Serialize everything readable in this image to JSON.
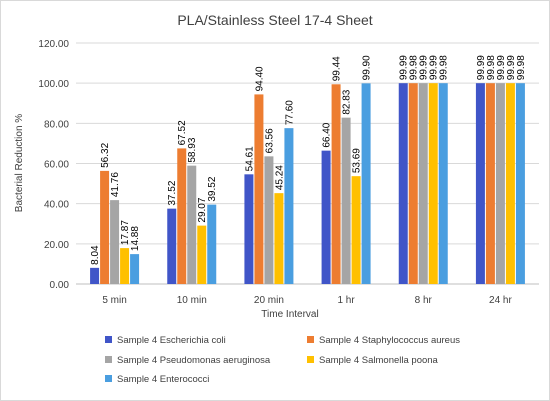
{
  "chart_data": {
    "type": "bar",
    "title": "PLA/Stainless Steel 17-4 Sheet",
    "xlabel": "Time Interval",
    "ylabel": "Bacterial Reduction %",
    "ylim": [
      0,
      120
    ],
    "yticks": [
      "0.00",
      "20.00",
      "40.00",
      "60.00",
      "80.00",
      "100.00",
      "120.00"
    ],
    "grid": true,
    "legend_position": "bottom",
    "categories": [
      "5 min",
      "10 min",
      "20 min",
      "1 hr",
      "8 hr",
      "24 hr"
    ],
    "series": [
      {
        "name": "Sample 4 Escherichia coli",
        "color": "#4055c8",
        "values": [
          8.04,
          37.52,
          54.61,
          66.4,
          99.99,
          99.99
        ],
        "labels": [
          "8.04",
          "37.52",
          "54.61",
          "66.40",
          "99.99",
          "99.99"
        ]
      },
      {
        "name": "Sample 4 Staphylococcus aureus",
        "color": "#ed7d31",
        "values": [
          56.32,
          67.52,
          94.4,
          99.44,
          99.98,
          99.98
        ],
        "labels": [
          "56.32",
          "67.52",
          "94.40",
          "99.44",
          "99.98",
          "99.98"
        ]
      },
      {
        "name": "Sample 4 Pseudomonas aeruginosa",
        "color": "#a5a5a5",
        "values": [
          41.76,
          58.93,
          63.56,
          82.83,
          99.99,
          99.99
        ],
        "labels": [
          "41.76",
          "58.93",
          "63.56",
          "82.83",
          "99.99",
          "99.99"
        ]
      },
      {
        "name": "Sample 4 Salmonella poona",
        "color": "#ffc000",
        "values": [
          17.87,
          29.07,
          45.24,
          53.69,
          99.99,
          99.99
        ],
        "labels": [
          "17.87",
          "29.07",
          "45.24",
          "53.69",
          "99.99",
          "99.99"
        ]
      },
      {
        "name": "Sample 4 Enterococci",
        "color": "#4a9ee0",
        "values": [
          14.88,
          39.52,
          77.6,
          99.9,
          99.98,
          99.98
        ],
        "labels": [
          "14.88",
          "39.52",
          "77.60",
          "99.90",
          "99.98",
          "99.98"
        ]
      }
    ]
  }
}
